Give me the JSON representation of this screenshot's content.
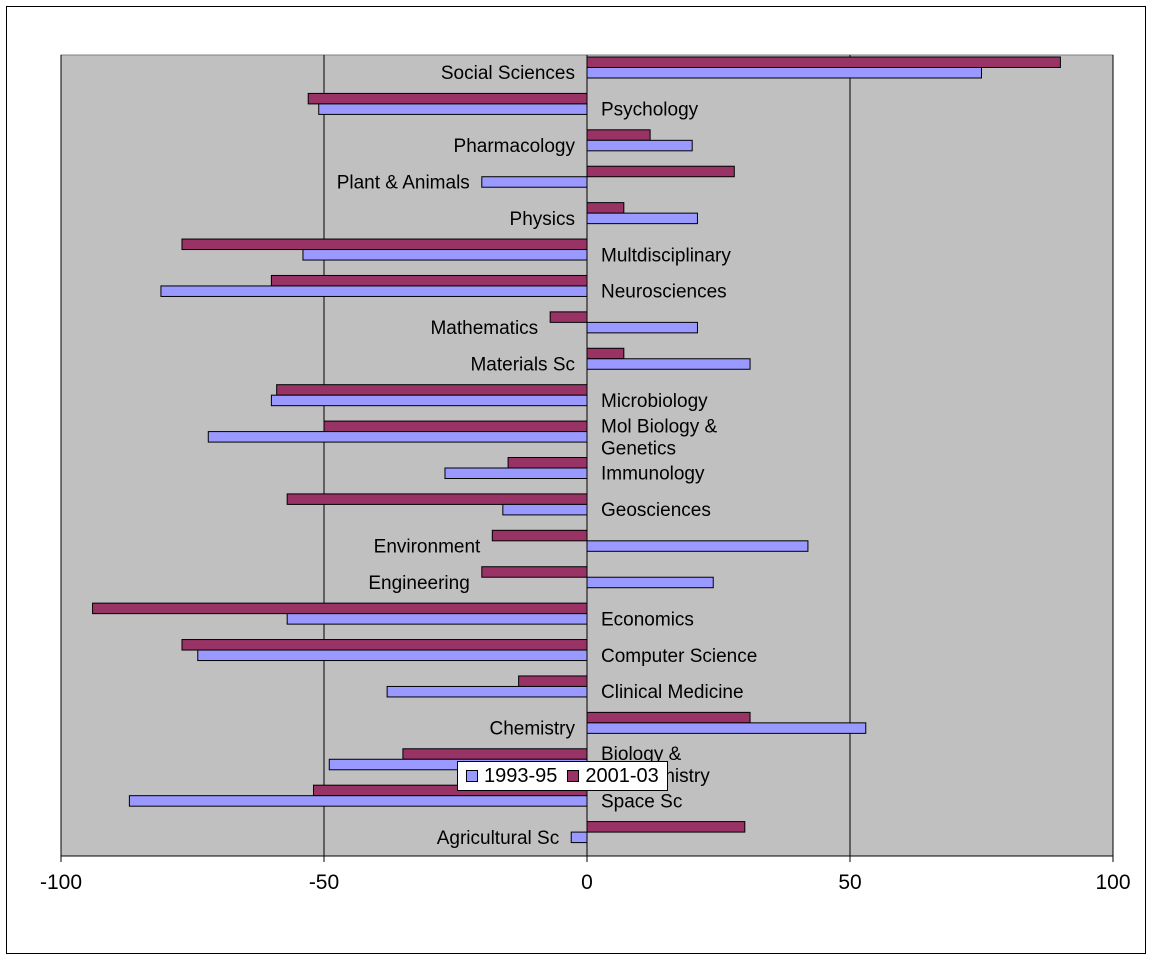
{
  "chart_data": {
    "type": "bar",
    "orientation": "horizontal",
    "categories": [
      "Social Sciences",
      "Psychology",
      "Pharmacology",
      "Plant & Animals",
      "Physics",
      "Multdisciplinary",
      "Neurosciences",
      "Mathematics",
      "Materials Sc",
      "Microbiology",
      "Mol Biology & Genetics",
      "Immunology",
      "Geosciences",
      "Environment",
      "Engineering",
      "Economics",
      "Computer Science",
      "Clinical Medicine",
      "Chemistry",
      "Biology & Biochemistry",
      "Space Sc",
      "Agricultural Sc"
    ],
    "series": [
      {
        "name": "1993-95",
        "color": "#9999ff",
        "values": [
          75,
          -51,
          20,
          -20,
          21,
          -54,
          -81,
          21,
          31,
          -60,
          -72,
          -27,
          -16,
          42,
          24,
          -57,
          -74,
          -38,
          53,
          -49,
          -87,
          -3
        ]
      },
      {
        "name": "2001-03",
        "color": "#993366",
        "values": [
          90,
          -53,
          12,
          28,
          7,
          -77,
          -60,
          -7,
          7,
          -59,
          -50,
          -15,
          -57,
          -18,
          -20,
          -94,
          -77,
          -13,
          31,
          -35,
          -52,
          30
        ]
      }
    ],
    "xlim": [
      -100,
      100
    ],
    "xticks": [
      "-100",
      "-50",
      "0",
      "50",
      "100"
    ],
    "xlabel": "",
    "ylabel": "",
    "title": "",
    "grid": "vertical major gridlines",
    "plot_background": "#c0c0c0",
    "legend_position": "bottom-center"
  }
}
